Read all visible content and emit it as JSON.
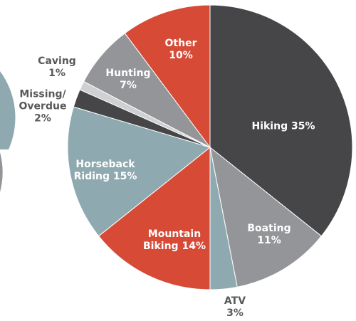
{
  "chart_data": {
    "type": "pie",
    "categories": [
      "Hiking",
      "Boating",
      "ATV",
      "Mountain Biking",
      "Horseback Riding",
      "Missing/ Overdue",
      "Caving",
      "Hunting",
      "Other"
    ],
    "values": [
      35,
      11,
      3,
      14,
      15,
      2,
      1,
      7,
      10
    ],
    "value_labels": [
      "35%",
      "11%",
      "3%",
      "14%",
      "15%",
      "2%",
      "1%",
      "7%",
      "10%"
    ],
    "colors": [
      "#464648",
      "#939598",
      "#8fa9b0",
      "#d64a36",
      "#8fa9b0",
      "#464648",
      "#cfd0d2",
      "#939598",
      "#d64a36"
    ]
  }
}
